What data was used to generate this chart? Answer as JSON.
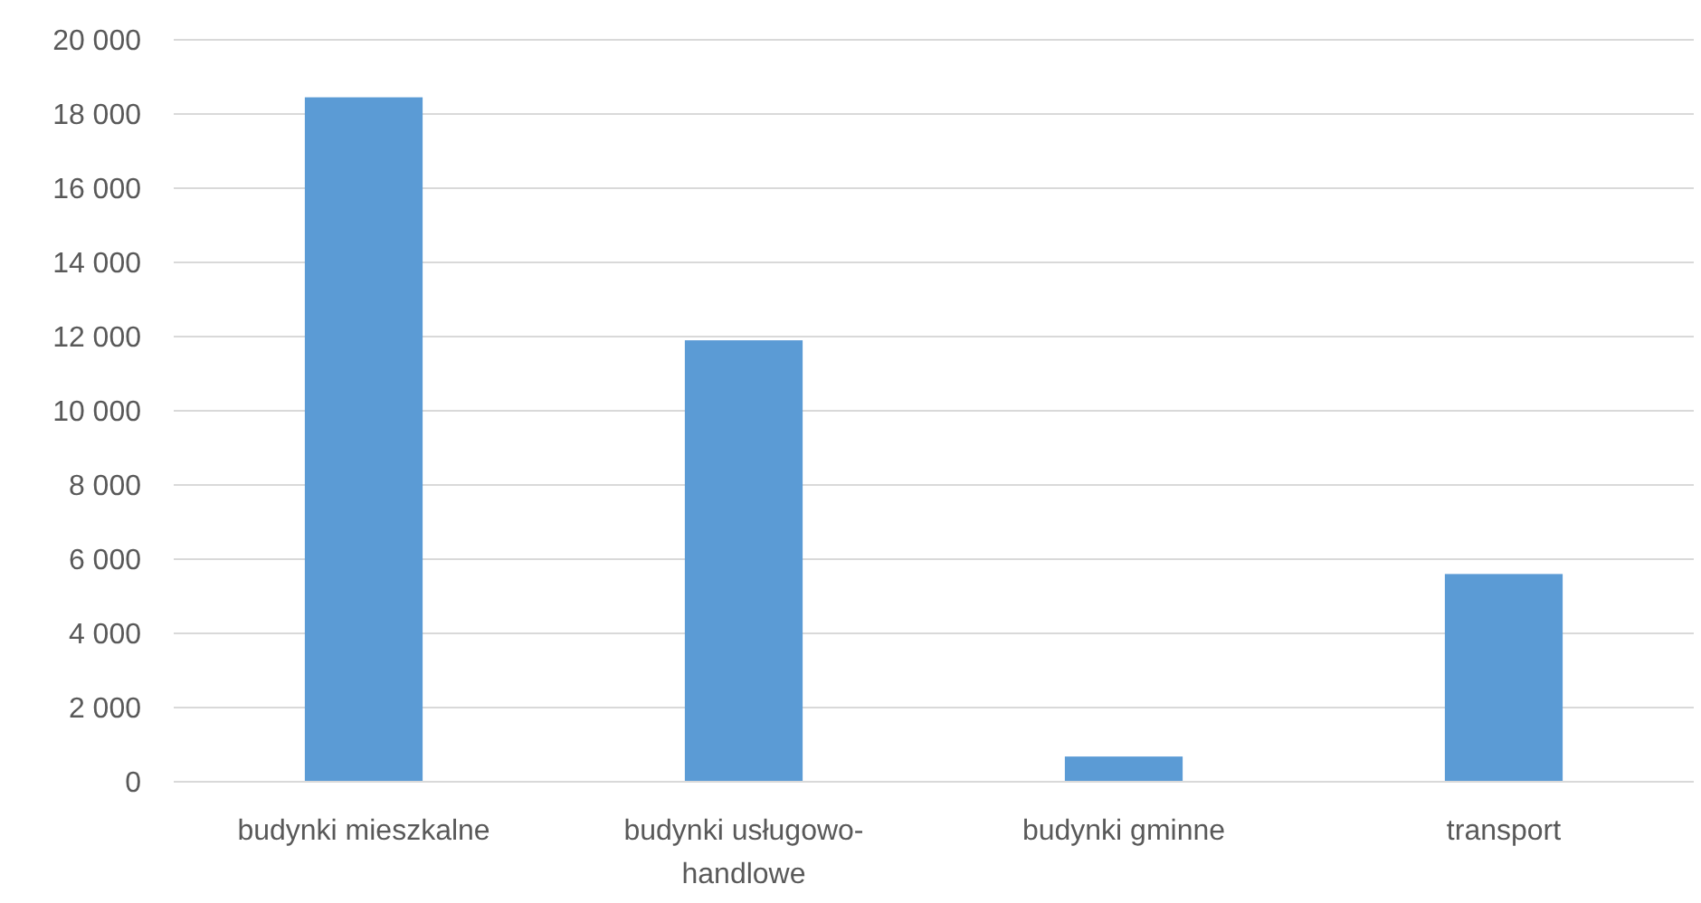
{
  "chart_data": {
    "type": "bar",
    "categories": [
      "budynki mieszkalne",
      "budynki usługowo-handlowe",
      "budynki gminne",
      "transport"
    ],
    "values": [
      18450,
      11900,
      680,
      5600
    ],
    "color": "#5b9bd5",
    "ylim": [
      0,
      20000
    ],
    "yticks": [
      {
        "value": 0,
        "label": "0"
      },
      {
        "value": 2000,
        "label": "2 000"
      },
      {
        "value": 4000,
        "label": "4 000"
      },
      {
        "value": 6000,
        "label": "6 000"
      },
      {
        "value": 8000,
        "label": "8 000"
      },
      {
        "value": 10000,
        "label": "10 000"
      },
      {
        "value": 12000,
        "label": "12 000"
      },
      {
        "value": 14000,
        "label": "14 000"
      },
      {
        "value": 16000,
        "label": "16 000"
      },
      {
        "value": 18000,
        "label": "18 000"
      },
      {
        "value": 20000,
        "label": "20 000"
      }
    ],
    "grid": "y"
  }
}
